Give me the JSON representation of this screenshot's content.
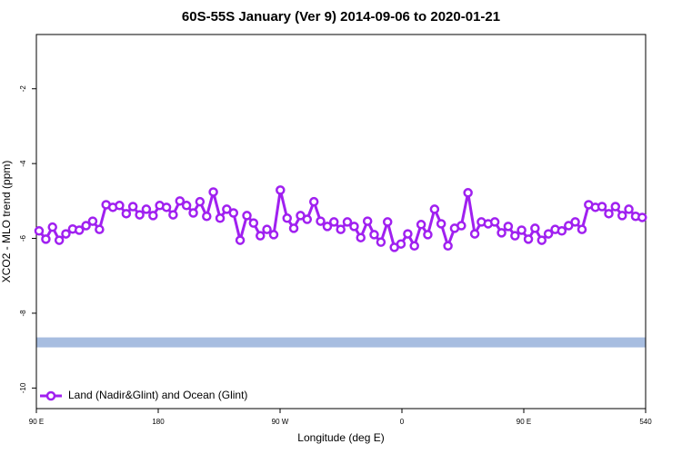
{
  "chart_data": {
    "type": "line",
    "title": "60S-55S January (Ver 9)   2014-09-06 to 2020-01-21",
    "xlabel": "Longitude (deg E)",
    "ylabel": "XCO2 - MLO trend (ppm)",
    "xlim": [
      90,
      540
    ],
    "ylim": [
      -10.55,
      -0.55
    ],
    "xticks": [
      {
        "value": 90,
        "label": "90 E"
      },
      180,
      {
        "value": 270,
        "label": "90 W"
      },
      {
        "value": 360,
        "label": "0"
      },
      {
        "value": 450,
        "label": "90 E"
      },
      540
    ],
    "yticks": [
      -2,
      -4,
      -6,
      -8,
      -10
    ],
    "legend": "bottom-left",
    "x": [
      92,
      97.0,
      101.9,
      106.9,
      111.8,
      116.8,
      121.7,
      126.7,
      131.6,
      136.6,
      141.5,
      146.5,
      151.4,
      156.4,
      161.3,
      166.3,
      171.2,
      176.2,
      181.1,
      186.1,
      191.0,
      196.0,
      200.9,
      205.9,
      210.8,
      215.8,
      220.7,
      225.7,
      230.6,
      235.6,
      240.5,
      245.5,
      250.4,
      255.4,
      260.3,
      265.3,
      270.2,
      275.2,
      280.1,
      285.1,
      290.0,
      295.0,
      299.9,
      304.9,
      309.8,
      314.8,
      319.7,
      324.7,
      329.6,
      334.6,
      339.5,
      344.5,
      349.4,
      354.4,
      359.3,
      364.3,
      369.2,
      374.2,
      379.1,
      384.1,
      389.0,
      394.0,
      398.9,
      403.9,
      408.8,
      413.8,
      418.7,
      423.7,
      428.6,
      433.6,
      438.5,
      443.5,
      448.4,
      453.4,
      458.3,
      463.3,
      468.2,
      473.2,
      478.1,
      483.1,
      488.0,
      493.0,
      497.9,
      502.9,
      507.8,
      512.8,
      517.7,
      522.7,
      527.6,
      532.6,
      537.5
    ],
    "series": [
      {
        "name": "Land (Nadir&Glint) and Ocean (Glint)",
        "color": "#a020f0",
        "values": [
          -5.8,
          -6.02,
          -5.7,
          -6.05,
          -5.88,
          -5.75,
          -5.78,
          -5.66,
          -5.54,
          -5.76,
          -5.1,
          -5.17,
          -5.12,
          -5.34,
          -5.15,
          -5.37,
          -5.22,
          -5.39,
          -5.12,
          -5.17,
          -5.37,
          -5.0,
          -5.12,
          -5.32,
          -5.02,
          -5.41,
          -4.76,
          -5.46,
          -5.22,
          -5.32,
          -6.05,
          -5.39,
          -5.59,
          -5.93,
          -5.76,
          -5.9,
          -4.71,
          -5.46,
          -5.73,
          -5.39,
          -5.49,
          -5.02,
          -5.54,
          -5.68,
          -5.56,
          -5.76,
          -5.56,
          -5.68,
          -5.98,
          -5.54,
          -5.9,
          -6.1,
          -5.56,
          -6.24,
          -6.15,
          -5.88,
          -6.2,
          -5.63,
          -5.9,
          -5.22,
          -5.61,
          -6.2,
          -5.73,
          -5.66,
          -4.78,
          -5.88,
          -5.56,
          -5.61,
          -5.56,
          -5.85,
          -5.68,
          -5.93,
          -5.78,
          -6.02,
          -5.73,
          -6.05,
          -5.88,
          -5.76,
          -5.8,
          -5.66,
          -5.56,
          -5.76,
          -5.1,
          -5.17,
          -5.15,
          -5.34,
          -5.15,
          -5.39,
          -5.22,
          -5.41,
          -5.44
        ]
      }
    ],
    "band": {
      "value": -8.78,
      "color": "#a7bde0"
    }
  }
}
